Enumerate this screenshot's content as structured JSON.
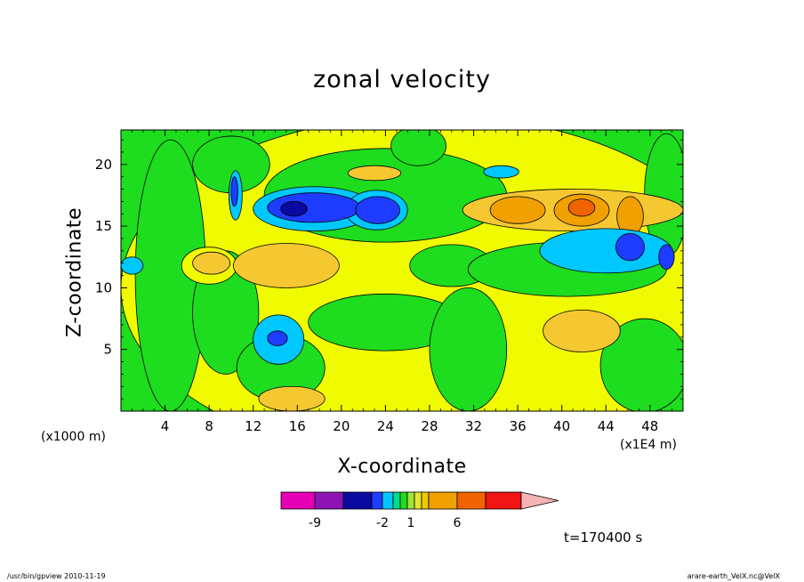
{
  "chart_data": {
    "type": "heatmap",
    "title": "zonal velocity",
    "xlabel": "X-coordinate",
    "ylabel": "Z-coordinate",
    "x_unit": "(x1000 m)",
    "x_multiplier": "(x1E4 m)",
    "x_ticks": [
      "4",
      "8",
      "12",
      "16",
      "20",
      "24",
      "28",
      "32",
      "36",
      "40",
      "44",
      "48"
    ],
    "y_ticks": [
      "5",
      "10",
      "15",
      "20"
    ],
    "xlim": [
      0,
      51
    ],
    "ylim": [
      0,
      22.8
    ],
    "colorbar": {
      "labels": [
        "-9",
        "-2",
        "1",
        "6"
      ],
      "colors": [
        "#e600b4",
        "#8c14b4",
        "#0a0aa0",
        "#1e3cff",
        "#00c8ff",
        "#00dc8c",
        "#1edc1e",
        "#a0e632",
        "#e6e632",
        "#f0c800",
        "#f0a000",
        "#f06400",
        "#f01414",
        "#f08070",
        "#f4b4b4"
      ]
    },
    "time_label": "t=170400 s",
    "colors": {
      "green": "#1edc1e",
      "yellow": "#f0fa00",
      "light_orange": "#f5c832",
      "orange": "#f0a000",
      "dark_orange": "#f06400",
      "cyan": "#00c8ff",
      "blue": "#1e3cff",
      "dark_blue": "#0a0aa0"
    },
    "regions": [
      {
        "level": "yellow",
        "center": [
          28,
          10
        ],
        "radius": [
          28,
          14
        ]
      },
      {
        "level": "green",
        "center": [
          24,
          17.5
        ],
        "radius": [
          11,
          3.8
        ]
      },
      {
        "level": "green",
        "center": [
          24,
          7.2
        ],
        "radius": [
          7,
          2.3
        ]
      },
      {
        "level": "green",
        "center": [
          4.5,
          11
        ],
        "radius": [
          3.2,
          11
        ]
      },
      {
        "level": "green",
        "center": [
          9.5,
          8
        ],
        "radius": [
          3,
          5
        ]
      },
      {
        "level": "green",
        "center": [
          10,
          20
        ],
        "radius": [
          3.5,
          2.3
        ]
      },
      {
        "level": "green",
        "center": [
          14.5,
          3.5
        ],
        "radius": [
          4,
          2.7
        ]
      },
      {
        "level": "green",
        "center": [
          31.5,
          5
        ],
        "radius": [
          3.5,
          5
        ]
      },
      {
        "level": "green",
        "center": [
          30,
          11.8
        ],
        "radius": [
          3.8,
          1.7
        ]
      },
      {
        "level": "green",
        "center": [
          27,
          21.5
        ],
        "radius": [
          2.5,
          1.6
        ]
      },
      {
        "level": "green",
        "center": [
          40.5,
          11.5
        ],
        "radius": [
          9,
          2.2
        ]
      },
      {
        "level": "green",
        "center": [
          47.5,
          3.7
        ],
        "radius": [
          4,
          3.8
        ]
      },
      {
        "level": "green",
        "center": [
          49.5,
          17.5
        ],
        "radius": [
          2,
          5
        ]
      },
      {
        "level": "yellow",
        "center": [
          8,
          11.8
        ],
        "radius": [
          2.5,
          1.5
        ]
      },
      {
        "level": "light_orange",
        "center": [
          15,
          11.8
        ],
        "radius": [
          4.8,
          1.8
        ]
      },
      {
        "level": "light_orange",
        "center": [
          8.2,
          12
        ],
        "radius": [
          1.7,
          0.9
        ]
      },
      {
        "level": "light_orange",
        "center": [
          15.5,
          1
        ],
        "radius": [
          3,
          1
        ]
      },
      {
        "level": "light_orange",
        "center": [
          23,
          19.3
        ],
        "radius": [
          2.4,
          0.6
        ]
      },
      {
        "level": "light_orange",
        "center": [
          41,
          16.3
        ],
        "radius": [
          10,
          1.7
        ]
      },
      {
        "level": "light_orange",
        "center": [
          41.8,
          6.5
        ],
        "radius": [
          3.5,
          1.7
        ]
      },
      {
        "level": "orange",
        "center": [
          36,
          16.3
        ],
        "radius": [
          2.5,
          1.1
        ]
      },
      {
        "level": "orange",
        "center": [
          41.8,
          16.3
        ],
        "radius": [
          2.5,
          1.3
        ]
      },
      {
        "level": "orange",
        "center": [
          46.2,
          15.8
        ],
        "radius": [
          1.2,
          1.6
        ]
      },
      {
        "level": "dark_orange",
        "center": [
          41.8,
          16.5
        ],
        "radius": [
          1.2,
          0.7
        ]
      },
      {
        "level": "cyan",
        "center": [
          17.5,
          16.4
        ],
        "radius": [
          5.5,
          1.8
        ]
      },
      {
        "level": "cyan",
        "center": [
          23.2,
          16.3
        ],
        "radius": [
          2.8,
          1.6
        ]
      },
      {
        "level": "cyan",
        "center": [
          14.3,
          5.8
        ],
        "radius": [
          2.3,
          2
        ]
      },
      {
        "level": "cyan",
        "center": [
          34.5,
          19.4
        ],
        "radius": [
          1.6,
          0.5
        ]
      },
      {
        "level": "cyan",
        "center": [
          44,
          13
        ],
        "radius": [
          6,
          1.8
        ]
      },
      {
        "level": "cyan",
        "center": [
          10.4,
          17.5
        ],
        "radius": [
          0.6,
          2
        ]
      },
      {
        "level": "cyan",
        "center": [
          1,
          11.8
        ],
        "radius": [
          1,
          0.7
        ]
      },
      {
        "level": "blue",
        "center": [
          17.5,
          16.5
        ],
        "radius": [
          4.2,
          1.2
        ]
      },
      {
        "level": "blue",
        "center": [
          23.3,
          16.3
        ],
        "radius": [
          2,
          1.1
        ]
      },
      {
        "level": "blue",
        "center": [
          14.2,
          5.9
        ],
        "radius": [
          0.9,
          0.6
        ]
      },
      {
        "level": "blue",
        "center": [
          46.2,
          13.3
        ],
        "radius": [
          1.3,
          1.1
        ]
      },
      {
        "level": "blue",
        "center": [
          10.3,
          17.8
        ],
        "radius": [
          0.3,
          1.2
        ]
      },
      {
        "level": "blue",
        "center": [
          49.5,
          12.5
        ],
        "radius": [
          0.7,
          1
        ]
      },
      {
        "level": "dark_blue",
        "center": [
          15.7,
          16.4
        ],
        "radius": [
          1.2,
          0.6
        ]
      }
    ]
  },
  "footer": {
    "left": "/usr/bin/gpview   2010-11-19",
    "right": "arare-earth_VelX.nc@VelX"
  }
}
